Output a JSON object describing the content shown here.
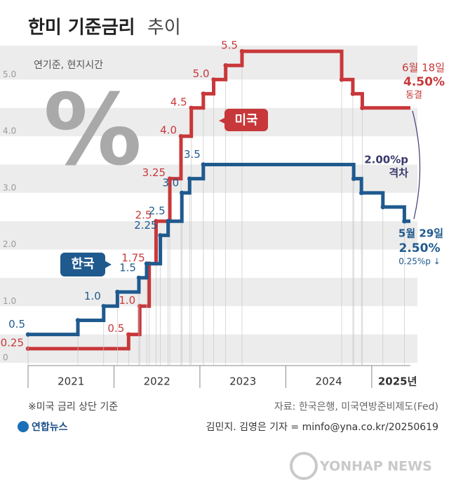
{
  "chart_data": {
    "type": "step",
    "title": "한미 기준금리",
    "title_suffix": "추이",
    "note": "연기준, 현지시간",
    "xlim": [
      2021,
      2025.45
    ],
    "xticks": [
      {
        "value": 2021.5,
        "label": "2021"
      },
      {
        "value": 2022.5,
        "label": "2022"
      },
      {
        "value": 2023.5,
        "label": "2023"
      },
      {
        "value": 2024.5,
        "label": "2024"
      },
      {
        "value": 2025.3,
        "label": "2025년"
      }
    ],
    "ylim": [
      0,
      5.6
    ],
    "yticks": [
      0,
      {
        "value": 1,
        "label": "1.0"
      },
      {
        "value": 2,
        "label": "2.0"
      },
      {
        "value": 3,
        "label": "3.0"
      },
      {
        "value": 4,
        "label": "4.0"
      },
      {
        "value": 5,
        "label": "5.0"
      }
    ],
    "grid": "bands",
    "series": [
      {
        "name": "미국",
        "color": "#c8383a",
        "x": [
          2021.0,
          2022.17,
          2022.3,
          2022.41,
          2022.49,
          2022.65,
          2022.78,
          2022.9,
          2023.04,
          2023.16,
          2023.3,
          2023.49,
          2024.65,
          2024.78,
          2024.89
        ],
        "values": [
          0.25,
          0.5,
          1.0,
          1.75,
          2.5,
          3.25,
          4.0,
          4.5,
          4.75,
          5.0,
          5.25,
          5.5,
          5.0,
          4.75,
          4.5
        ],
        "value_labels": [
          "0.25",
          "0.5",
          "1.0",
          "1.75",
          "2.5",
          "3.25",
          "4.0",
          "4.5",
          null,
          "5.0",
          null,
          "5.5",
          null,
          null,
          null
        ]
      },
      {
        "name": "한국",
        "color": "#1f5a8e",
        "x": [
          2021.0,
          2021.58,
          2021.88,
          2022.04,
          2022.29,
          2022.38,
          2022.54,
          2022.63,
          2022.79,
          2022.88,
          2023.04,
          2024.79,
          2024.88,
          2025.13,
          2025.38
        ],
        "values": [
          0.5,
          0.75,
          1.0,
          1.25,
          1.5,
          1.75,
          2.25,
          2.5,
          3.0,
          3.25,
          3.5,
          3.25,
          3.0,
          2.75,
          2.5
        ],
        "value_labels": [
          "0.5",
          null,
          "1.0",
          null,
          "1.5",
          null,
          "2.25",
          "2.5",
          "3.0",
          null,
          "3.5",
          null,
          null,
          null,
          null
        ]
      }
    ],
    "annotations": {
      "us_date": "6월 18일",
      "us_rate": "4.50%",
      "us_status": "동결",
      "gap": "2.00%p",
      "gap_word": "격차",
      "kr_date": "5월 29일",
      "kr_rate": "2.50%",
      "kr_change": "0.25%p ↓",
      "symbol": "%"
    },
    "footnote": "※미국 금리 상단 기준",
    "source": "자료: 한국은행, 미국연방준비제도(Fed)",
    "credit": "김민지. 김영은 기자 = minfo@yna.co.kr/20250619",
    "logo": "연합뉴스",
    "watermark": "YONHAP NEWS"
  }
}
